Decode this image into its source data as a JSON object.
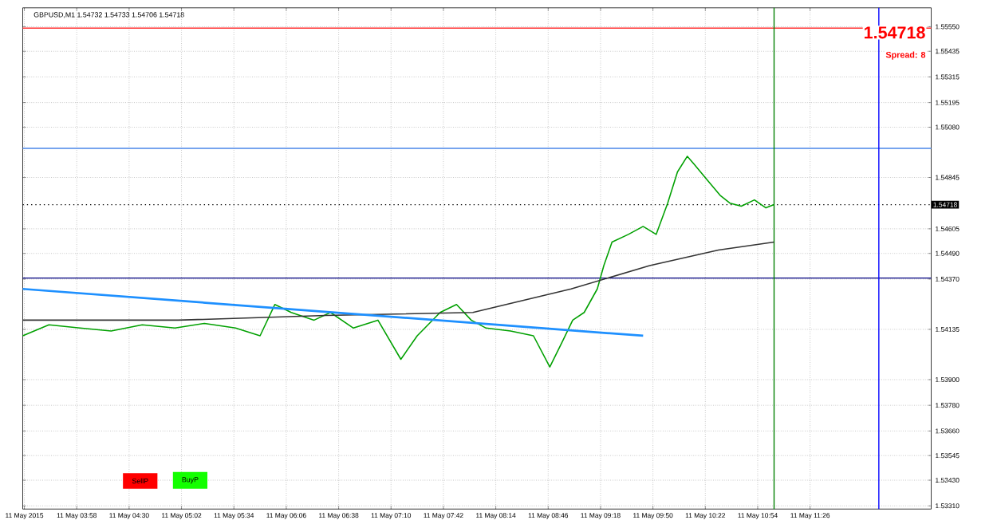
{
  "chart_data": {
    "type": "line",
    "title": "GBPUSD,M1 1.54732 1.54733 1.54706 1.54718",
    "annotations": [
      "1.54718",
      "Spread: 8",
      "SellP",
      "BuyP"
    ],
    "series": [
      {
        "color": "#00a000",
        "x": [
          "2015-05-11T03:25",
          "2015-05-11T03:41",
          "2015-05-11T04:00",
          "2015-05-11T04:19",
          "2015-05-11T04:38",
          "2015-05-11T04:58",
          "2015-05-11T05:16",
          "2015-05-11T05:35",
          "2015-05-11T05:50",
          "2015-05-11T05:59",
          "2015-05-11T06:09",
          "2015-05-11T06:23",
          "2015-05-11T06:33",
          "2015-05-11T06:47",
          "2015-05-11T07:02",
          "2015-05-11T07:16",
          "2015-05-11T07:26",
          "2015-05-11T07:40",
          "2015-05-11T07:50",
          "2015-05-11T07:59",
          "2015-05-11T08:08",
          "2015-05-11T08:23",
          "2015-05-11T08:37",
          "2015-05-11T08:47",
          "2015-05-11T08:55",
          "2015-05-11T09:01",
          "2015-05-11T09:08",
          "2015-05-11T09:16",
          "2015-05-11T09:20",
          "2015-05-11T09:25",
          "2015-05-11T09:35",
          "2015-05-11T09:44",
          "2015-05-11T09:52",
          "2015-05-11T09:59",
          "2015-05-11T10:05",
          "2015-05-11T10:11",
          "2015-05-11T10:15",
          "2015-05-11T10:23",
          "2015-05-11T10:31",
          "2015-05-11T10:37",
          "2015-05-11T10:44",
          "2015-05-11T10:52",
          "2015-05-11T10:59",
          "2015-05-11T11:04"
        ],
        "values": [
          1.54105,
          1.54156,
          1.54141,
          1.54127,
          1.54156,
          1.54141,
          1.54163,
          1.54141,
          1.54105,
          1.54251,
          1.54214,
          1.54178,
          1.54214,
          1.54141,
          1.54178,
          1.53995,
          1.54105,
          1.54214,
          1.54251,
          1.54178,
          1.54141,
          1.54127,
          1.54105,
          1.53959,
          1.54083,
          1.54178,
          1.54214,
          1.54324,
          1.54433,
          1.54543,
          1.54579,
          1.54616,
          1.54579,
          1.54725,
          1.54871,
          1.54944,
          1.54908,
          1.54835,
          1.54762,
          1.54725,
          1.54711,
          1.5474,
          1.54703,
          1.54718
        ]
      },
      {
        "color": "#333333",
        "x": [
          "2015-05-11T03:25",
          "2015-05-11T05:00",
          "2015-05-11T06:30",
          "2015-05-11T08:00",
          "2015-05-11T09:00",
          "2015-05-11T09:48",
          "2015-05-11T10:30",
          "2015-05-11T11:04"
        ],
        "values": [
          1.54178,
          1.54178,
          1.542,
          1.54214,
          1.54324,
          1.54433,
          1.54506,
          1.54543
        ]
      },
      {
        "color": "#1e90ff",
        "x": [
          "2015-05-11T03:25",
          "2015-05-11T09:44"
        ],
        "values": [
          1.54324,
          1.54105
        ]
      }
    ],
    "xlim": [
      "2015-05-11T03:25",
      "2015-05-11T12:40"
    ],
    "ylim": [
      1.53295,
      1.55638
    ],
    "xticks": [
      {
        "value": "2015-05-11T03:26",
        "label": "11 May 2015"
      },
      {
        "value": "2015-05-11T03:58",
        "label": "11 May 03:58"
      },
      {
        "value": "2015-05-11T04:30",
        "label": "11 May 04:30"
      },
      {
        "value": "2015-05-11T05:02",
        "label": "11 May 05:02"
      },
      {
        "value": "2015-05-11T05:34",
        "label": "11 May 05:34"
      },
      {
        "value": "2015-05-11T06:06",
        "label": "11 May 06:06"
      },
      {
        "value": "2015-05-11T06:38",
        "label": "11 May 06:38"
      },
      {
        "value": "2015-05-11T07:10",
        "label": "11 May 07:10"
      },
      {
        "value": "2015-05-11T07:42",
        "label": "11 May 07:42"
      },
      {
        "value": "2015-05-11T08:14",
        "label": "11 May 08:14"
      },
      {
        "value": "2015-05-11T08:46",
        "label": "11 May 08:46"
      },
      {
        "value": "2015-05-11T09:18",
        "label": "11 May 09:18"
      },
      {
        "value": "2015-05-11T09:50",
        "label": "11 May 09:50"
      },
      {
        "value": "2015-05-11T10:22",
        "label": "11 May 10:22"
      },
      {
        "value": "2015-05-11T10:54",
        "label": "11 May 10:54"
      },
      {
        "value": "2015-05-11T11:26",
        "label": "11 May 11:26"
      }
    ],
    "yticks": [
      {
        "value": 1.5555,
        "label": "1.55550"
      },
      {
        "value": 1.55435,
        "label": "1.55435"
      },
      {
        "value": 1.55315,
        "label": "1.55315"
      },
      {
        "value": 1.55195,
        "label": "1.55195"
      },
      {
        "value": 1.5508,
        "label": "1.55080"
      },
      {
        "value": 1.54845,
        "label": "1.54845"
      },
      {
        "value": 1.54605,
        "label": "1.54605"
      },
      {
        "value": 1.5449,
        "label": "1.54490"
      },
      {
        "value": 1.5437,
        "label": "1.54370"
      },
      {
        "value": 1.54135,
        "label": "1.54135"
      },
      {
        "value": 1.539,
        "label": "1.53900"
      },
      {
        "value": 1.5378,
        "label": "1.53780"
      },
      {
        "value": 1.5366,
        "label": "1.53660"
      },
      {
        "value": 1.53545,
        "label": "1.53545"
      },
      {
        "value": 1.5343,
        "label": "1.53430"
      },
      {
        "value": 1.5331,
        "label": "1.53310"
      }
    ],
    "ref_lines": [
      {
        "axis": "y",
        "value": 1.54718,
        "label": "1.54718",
        "color": "#000000",
        "line_style": "dotted"
      },
      {
        "axis": "y",
        "value": 1.55543,
        "color": "#ff3030",
        "line_style": "solid"
      },
      {
        "axis": "y",
        "value": 1.54981,
        "color": "#4a86e8",
        "line_style": "solid"
      },
      {
        "axis": "y",
        "value": 1.54375,
        "color": "#000080",
        "line_style": "solid"
      },
      {
        "axis": "x",
        "value": "2015-05-11T11:04",
        "color": "#008000",
        "line_style": "solid"
      },
      {
        "axis": "x",
        "value": "2015-05-11T12:08",
        "color": "#0000ff",
        "line_style": "solid"
      }
    ],
    "grid": true,
    "line_style": "solid"
  }
}
